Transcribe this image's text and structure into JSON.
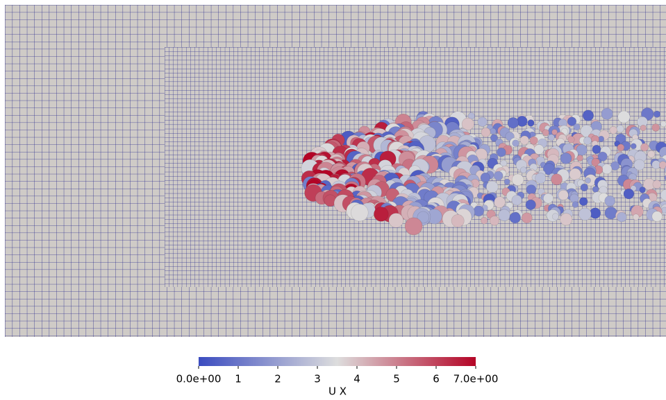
{
  "colorbar": {
    "title": "U X",
    "range": [
      0,
      7
    ],
    "ticks": [
      {
        "value": 0,
        "label": "0.0e+00"
      },
      1,
      2,
      3,
      4,
      5,
      6,
      {
        "value": 7,
        "label": "7.0e+00"
      }
    ],
    "colors": [
      "#3b4cc0",
      "#dddddd",
      "#b40426"
    ]
  }
}
